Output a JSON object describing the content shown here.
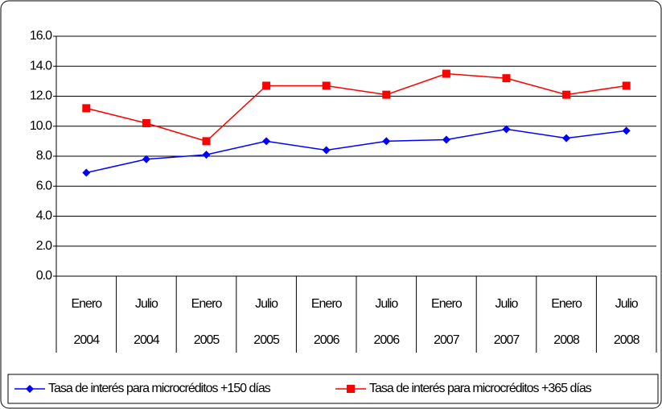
{
  "chart_data": {
    "type": "line",
    "categories": [
      [
        "Enero",
        "2004"
      ],
      [
        "Julio",
        "2004"
      ],
      [
        "Enero",
        "2005"
      ],
      [
        "Julio",
        "2005"
      ],
      [
        "Enero",
        "2006"
      ],
      [
        "Julio",
        "2006"
      ],
      [
        "Enero",
        "2007"
      ],
      [
        "Julio",
        "2007"
      ],
      [
        "Enero",
        "2008"
      ],
      [
        "Julio",
        "2008"
      ]
    ],
    "series": [
      {
        "name": "Tasa de interés para microcréditos +150 días",
        "color": "#0000ff",
        "marker": "diamond",
        "values": [
          6.9,
          7.8,
          8.1,
          9.0,
          8.4,
          9.0,
          9.1,
          9.8,
          9.2,
          9.7
        ]
      },
      {
        "name": "Tasa de interés para microcréditos +365 días",
        "color": "#ff0000",
        "marker": "square",
        "values": [
          11.2,
          10.2,
          9.0,
          12.7,
          12.7,
          12.1,
          13.5,
          13.2,
          12.1,
          12.7
        ]
      }
    ],
    "ylim": [
      0,
      16
    ],
    "yticks": [
      {
        "value": 0,
        "label": "0.0"
      },
      {
        "value": 2,
        "label": "2.0"
      },
      {
        "value": 4,
        "label": "4.0"
      },
      {
        "value": 6,
        "label": "6.0"
      },
      {
        "value": 8,
        "label": "8.0"
      },
      {
        "value": 10,
        "label": "10.0"
      },
      {
        "value": 12,
        "label": "12.0"
      },
      {
        "value": 14,
        "label": "14.0"
      },
      {
        "value": 16,
        "label": "16.0"
      }
    ],
    "grid": true,
    "legend": "bottom"
  }
}
